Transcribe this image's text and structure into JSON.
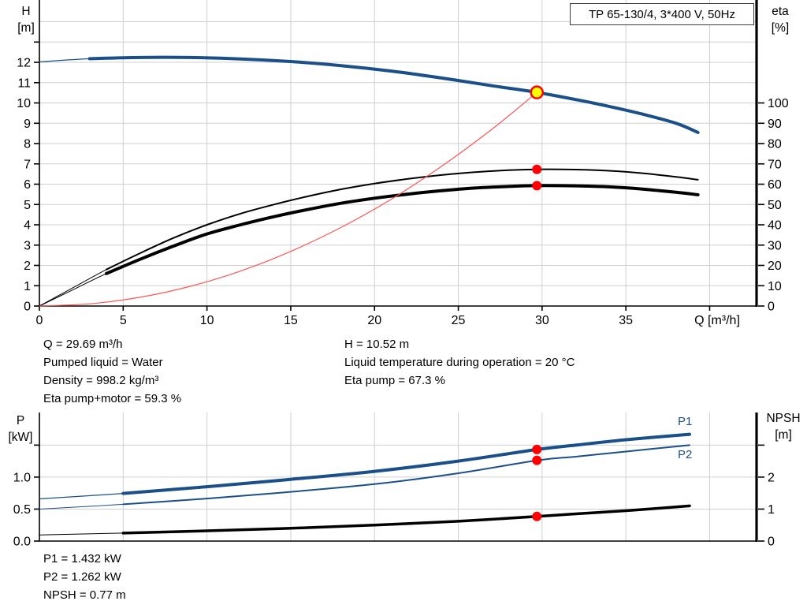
{
  "title_box": {
    "label": "TP 65-130/4, 3*400 V, 50Hz"
  },
  "labels": {
    "h_axis_1": "H",
    "h_axis_2": "[m]",
    "eta_axis_1": "eta",
    "eta_axis_2": "[%]",
    "q_axis": "Q [m³/h]",
    "p_axis_1": "P",
    "p_axis_2": "[kW]",
    "npsh_axis_1": "NPSH",
    "npsh_axis_2": "[m]",
    "p1_curve": "P1",
    "p2_curve": "P2"
  },
  "info": {
    "top_left": [
      "Q = 29.69 m³/h",
      "Pumped liquid = Water",
      "Density = 998.2 kg/m³",
      "Eta pump+motor = 59.3 %"
    ],
    "top_right": [
      "H = 10.52 m",
      "Liquid temperature during operation = 20 °C",
      "Eta pump = 67.3 %"
    ],
    "bottom_left": [
      "P1 = 1.432 kW",
      "P2 = 1.262 kW",
      "NPSH = 0.77 m"
    ]
  },
  "operating_point": {
    "q_m3h": 29.69,
    "h_m": 10.52,
    "eta_pump_pct": 67.3,
    "eta_pump_motor_pct": 59.3,
    "p1_kw": 1.432,
    "p2_kw": 1.262,
    "npsh_m": 0.77
  },
  "colors": {
    "curve_blue": "#1b4f8a",
    "curve_black": "#000000",
    "system_red": "#ff5555",
    "marker_red": "#ff0000",
    "marker_yellow": "#ffff00",
    "grid": "#cfcfcf",
    "axis": "#000000"
  },
  "chart_data": [
    {
      "type": "line",
      "title": "TP 65-130/4, 3*400 V, 50Hz",
      "xlabel": "Q [m³/h]",
      "ylabel_left": "H [m]",
      "ylabel_right": "eta [%]",
      "xlim": [
        0,
        42.8
      ],
      "ylim_left": [
        0,
        15.07
      ],
      "ylim_right": [
        0,
        150.7
      ],
      "legend": "none",
      "x_ticks": {
        "values": [
          0,
          5,
          10,
          15,
          20,
          25,
          30,
          35,
          40
        ],
        "labels": [
          "0",
          "5",
          "10",
          "15",
          "20",
          "25",
          "30",
          "35",
          ""
        ]
      },
      "y_left_ticks": {
        "values": [
          0,
          1,
          2,
          3,
          4,
          5,
          6,
          7,
          8,
          9,
          10,
          11,
          12,
          13
        ],
        "labels": [
          "0",
          "1",
          "2",
          "3",
          "4",
          "5",
          "6",
          "7",
          "8",
          "9",
          "10",
          "11",
          "12",
          ""
        ]
      },
      "y_right_ticks": {
        "values": [
          0,
          10,
          20,
          30,
          40,
          50,
          60,
          70,
          80,
          90,
          100
        ],
        "labels": [
          "0",
          "10",
          "20",
          "30",
          "40",
          "50",
          "60",
          "70",
          "80",
          "90",
          "100"
        ]
      },
      "grid": {
        "x": [
          5,
          10,
          15,
          20,
          25,
          30,
          35,
          40
        ],
        "y": [
          1,
          2,
          3,
          4,
          5,
          6,
          7,
          8,
          9,
          10,
          11,
          12,
          13,
          14
        ]
      },
      "series": [
        {
          "name": "head-curve",
          "axis": "left",
          "color": "#1b4f8a",
          "width": 4,
          "thin_width": 1.2,
          "split": 2.8,
          "points": [
            [
              0,
              12.02
            ],
            [
              3,
              12.18
            ],
            [
              6,
              12.24
            ],
            [
              9,
              12.24
            ],
            [
              12,
              12.17
            ],
            [
              15,
              12.04
            ],
            [
              18,
              11.84
            ],
            [
              21,
              11.57
            ],
            [
              24,
              11.23
            ],
            [
              27,
              10.85
            ],
            [
              29.69,
              10.52
            ],
            [
              32,
              10.17
            ],
            [
              34,
              9.83
            ],
            [
              36,
              9.45
            ],
            [
              38,
              9.0
            ],
            [
              39.3,
              8.55
            ]
          ]
        },
        {
          "name": "eta-pump-curve",
          "axis": "right",
          "color": "#000000",
          "width": 2,
          "thin_width": 1,
          "split": 2.8,
          "points": [
            [
              0,
              0
            ],
            [
              2,
              9
            ],
            [
              4,
              18
            ],
            [
              6,
              26
            ],
            [
              8,
              33.5
            ],
            [
              10,
              40
            ],
            [
              12,
              45.5
            ],
            [
              14,
              50
            ],
            [
              16,
              54
            ],
            [
              18,
              57.5
            ],
            [
              20,
              60.3
            ],
            [
              22,
              62.6
            ],
            [
              24,
              64.5
            ],
            [
              26,
              65.9
            ],
            [
              28,
              66.9
            ],
            [
              29.69,
              67.3
            ],
            [
              32,
              67.2
            ],
            [
              34,
              66.6
            ],
            [
              36,
              65.4
            ],
            [
              38,
              63.6
            ],
            [
              39.3,
              62.2
            ]
          ]
        },
        {
          "name": "eta-pump-motor-curve",
          "axis": "right",
          "color": "#000000",
          "width": 4,
          "thin_width": 1,
          "split": 2.8,
          "points": [
            [
              0,
              0
            ],
            [
              2,
              8
            ],
            [
              4,
              16
            ],
            [
              6,
              23
            ],
            [
              8,
              29.5
            ],
            [
              10,
              35.5
            ],
            [
              12,
              40
            ],
            [
              14,
              44
            ],
            [
              16,
              47.5
            ],
            [
              18,
              50.6
            ],
            [
              20,
              53.1
            ],
            [
              22,
              55.1
            ],
            [
              24,
              56.8
            ],
            [
              26,
              58.1
            ],
            [
              28,
              58.9
            ],
            [
              29.69,
              59.3
            ],
            [
              32,
              59.2
            ],
            [
              34,
              58.7
            ],
            [
              36,
              57.6
            ],
            [
              38,
              56.0
            ],
            [
              39.3,
              54.8
            ]
          ]
        },
        {
          "name": "system-curve",
          "axis": "left",
          "color": "#ff5555",
          "width": 1.2,
          "points": [
            [
              0,
              0
            ],
            [
              3,
              0.11
            ],
            [
              6,
              0.43
            ],
            [
              9,
              0.97
            ],
            [
              12,
              1.72
            ],
            [
              15,
              2.69
            ],
            [
              18,
              3.87
            ],
            [
              21,
              5.26
            ],
            [
              24,
              6.88
            ],
            [
              27,
              8.7
            ],
            [
              29.69,
              10.52
            ]
          ]
        }
      ],
      "markers": [
        {
          "name": "operating-point-marker",
          "axis": "left",
          "q": 29.69,
          "v": 10.52,
          "r": 7.5,
          "fill": "#ffff00",
          "stroke": "#ff0000",
          "stroke_width": 2.5
        },
        {
          "name": "eta-pump-point",
          "axis": "right",
          "q": 29.69,
          "v": 67.3,
          "r": 6,
          "fill": "#ff0000"
        },
        {
          "name": "eta-pump-motor-point",
          "axis": "right",
          "q": 29.69,
          "v": 59.3,
          "r": 6,
          "fill": "#ff0000"
        }
      ]
    },
    {
      "type": "line",
      "title": "",
      "xlabel": "",
      "ylabel_left": "P [kW]",
      "ylabel_right": "NPSH [m]",
      "xlim": [
        0,
        42.8
      ],
      "ylim_left": [
        0,
        2.01
      ],
      "ylim_right": [
        0,
        4.02
      ],
      "legend": "P1 thick blue, P2 thin blue, NPSH black",
      "x_ticks": {
        "values": [],
        "labels": []
      },
      "y_left_ticks": {
        "values": [
          0,
          0.5,
          1.0,
          1.5
        ],
        "labels": [
          "0.0",
          "0.5",
          "1.0",
          ""
        ]
      },
      "y_right_ticks": {
        "values": [
          0,
          1,
          2,
          3
        ],
        "labels": [
          "0",
          "1",
          "2",
          ""
        ]
      },
      "grid": {
        "x": [
          5,
          10,
          15,
          20,
          25,
          30,
          35,
          40
        ],
        "y": [
          0.5,
          1.0,
          1.5
        ]
      },
      "series": [
        {
          "name": "p1-curve",
          "axis": "left",
          "color": "#1b4f8a",
          "width": 4,
          "thin_width": 1.2,
          "split": 2.8,
          "points": [
            [
              0,
              0.66
            ],
            [
              5,
              0.745
            ],
            [
              10,
              0.85
            ],
            [
              15,
              0.965
            ],
            [
              20,
              1.09
            ],
            [
              25,
              1.25
            ],
            [
              29.69,
              1.432
            ],
            [
              32,
              1.5
            ],
            [
              35,
              1.585
            ],
            [
              38.8,
              1.67
            ]
          ]
        },
        {
          "name": "p2-curve",
          "axis": "left",
          "color": "#1b4f8a",
          "width": 2,
          "thin_width": 1,
          "split": 2.8,
          "points": [
            [
              0,
              0.5
            ],
            [
              5,
              0.575
            ],
            [
              10,
              0.665
            ],
            [
              15,
              0.77
            ],
            [
              20,
              0.89
            ],
            [
              25,
              1.06
            ],
            [
              29.69,
              1.262
            ],
            [
              32,
              1.32
            ],
            [
              35,
              1.4
            ],
            [
              38.8,
              1.5
            ]
          ]
        },
        {
          "name": "npsh-curve",
          "axis": "right",
          "color": "#000000",
          "width": 3.5,
          "thin_width": 1,
          "split": 2.8,
          "points": [
            [
              0,
              0.19
            ],
            [
              5,
              0.25
            ],
            [
              10,
              0.32
            ],
            [
              15,
              0.4
            ],
            [
              20,
              0.5
            ],
            [
              25,
              0.62
            ],
            [
              29.69,
              0.77
            ],
            [
              32,
              0.85
            ],
            [
              35,
              0.95
            ],
            [
              38.8,
              1.1
            ]
          ]
        }
      ],
      "markers": [
        {
          "name": "p1-point",
          "axis": "left",
          "q": 29.69,
          "v": 1.432,
          "r": 6,
          "fill": "#ff0000"
        },
        {
          "name": "p2-point",
          "axis": "left",
          "q": 29.69,
          "v": 1.262,
          "r": 6,
          "fill": "#ff0000"
        },
        {
          "name": "npsh-point",
          "axis": "right",
          "q": 29.69,
          "v": 0.77,
          "r": 6,
          "fill": "#ff0000"
        }
      ]
    }
  ]
}
